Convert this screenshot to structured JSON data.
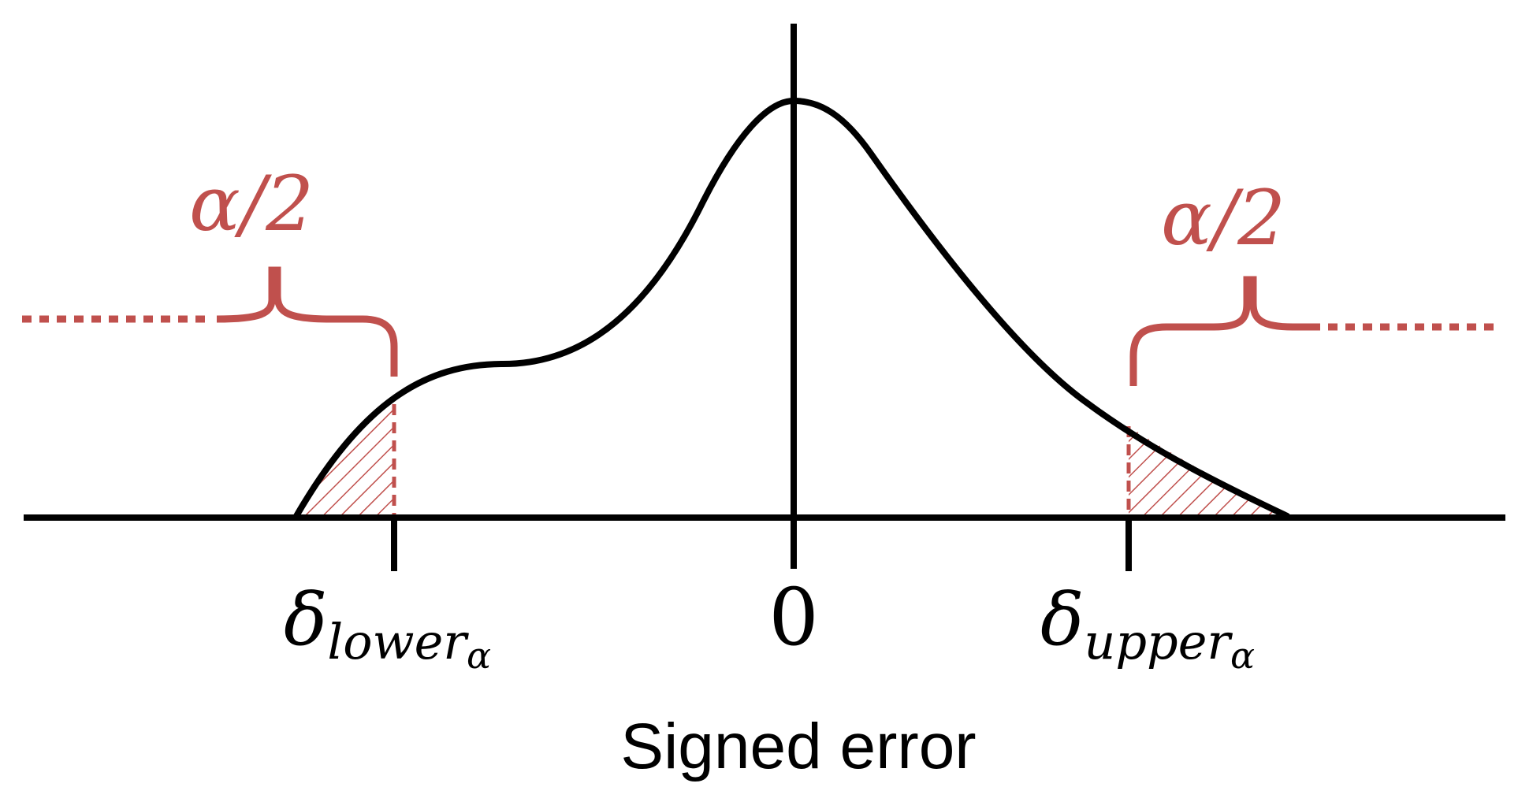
{
  "labels": {
    "alpha_half_left": "α/2",
    "alpha_half_right": "α/2",
    "lower_bound": {
      "symbol": "δ",
      "subscript": "lower",
      "sub_subscript": "α"
    },
    "zero": "0",
    "upper_bound": {
      "symbol": "δ",
      "subscript": "upper",
      "sub_subscript": "α"
    },
    "x_axis_label": "Signed error"
  },
  "colors": {
    "curve": "#000000",
    "axis": "#000000",
    "accent": "#c0504d"
  }
}
